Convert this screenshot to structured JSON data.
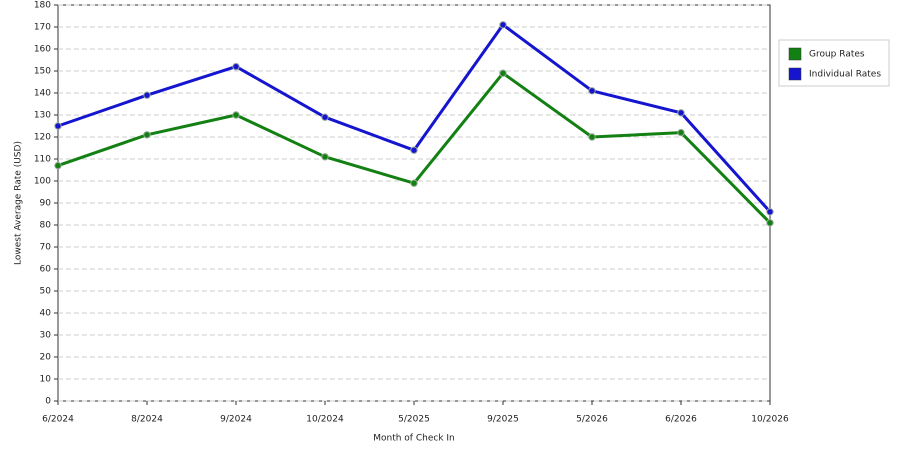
{
  "chart_data": {
    "type": "line",
    "x_label": "Month of Check In",
    "y_label": "Lowest Average Rate (USD)",
    "categories": [
      "6/2024",
      "8/2024",
      "9/2024",
      "10/2024",
      "5/2025",
      "9/2025",
      "5/2026",
      "6/2026",
      "10/2026"
    ],
    "series": [
      {
        "name": "Group Rates",
        "color": "#138013",
        "values": [
          107,
          121,
          130,
          111,
          99,
          149,
          120,
          122,
          81
        ]
      },
      {
        "name": "Individual Rates",
        "color": "#1515d0",
        "values": [
          125,
          139,
          152,
          129,
          114,
          171,
          141,
          131,
          86
        ]
      }
    ],
    "ylim": [
      0,
      180
    ],
    "yticks": [
      0,
      10,
      20,
      30,
      40,
      50,
      60,
      70,
      80,
      90,
      100,
      110,
      120,
      130,
      140,
      150,
      160,
      170,
      180
    ],
    "grid": true
  }
}
